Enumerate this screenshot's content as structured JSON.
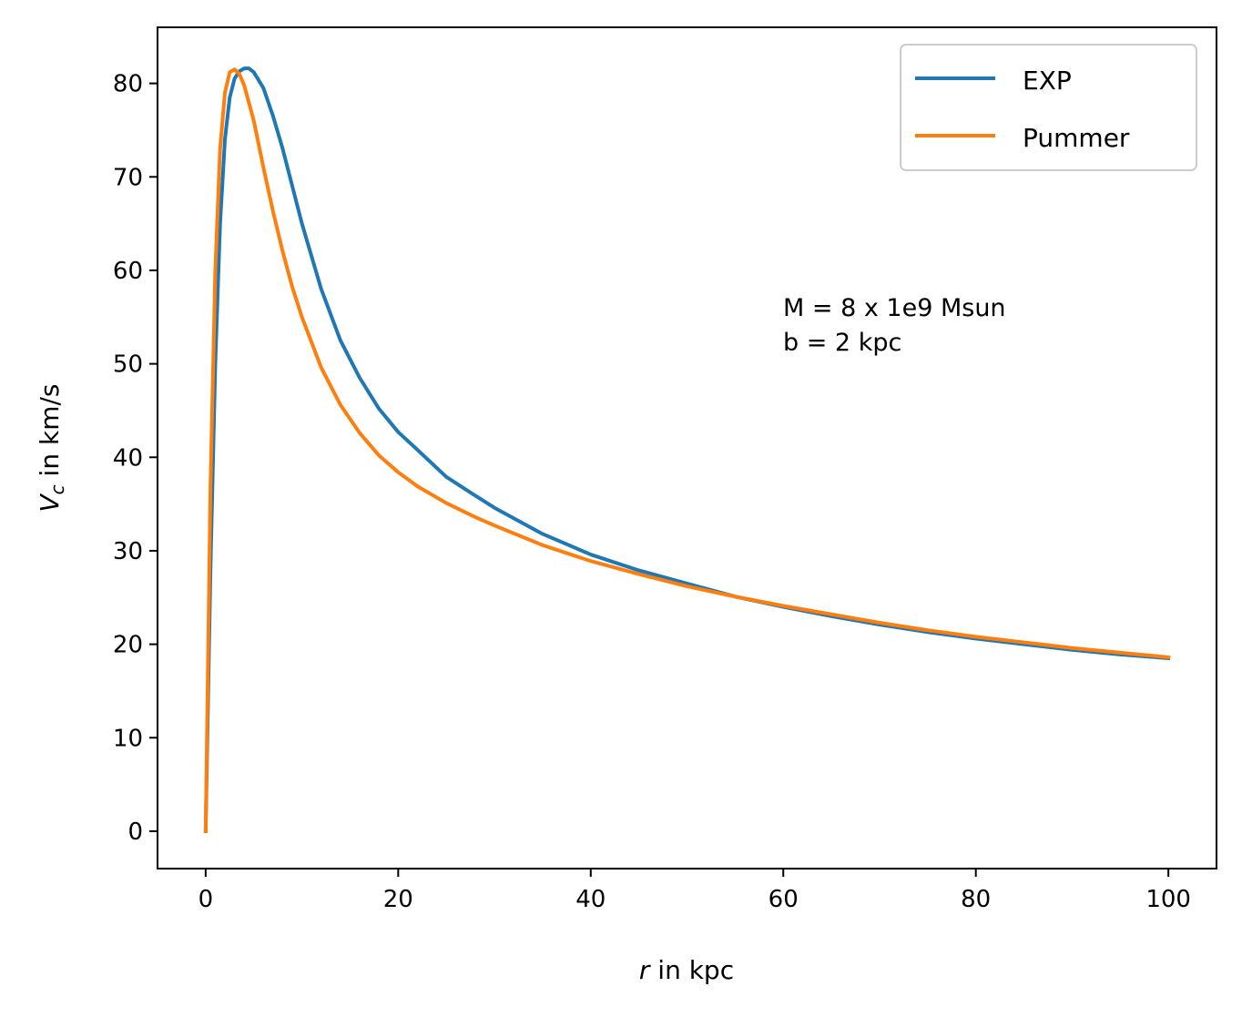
{
  "chart_data": {
    "type": "line",
    "title": "",
    "xlabel_var": "r",
    "xlabel_rest": " in kpc",
    "ylabel_var": "V",
    "ylabel_sub": "c",
    "ylabel_rest": " in km/s",
    "xlim": [
      -5,
      105
    ],
    "ylim": [
      -4,
      86
    ],
    "xticks": [
      0,
      20,
      40,
      60,
      80,
      100
    ],
    "yticks": [
      0,
      10,
      20,
      30,
      40,
      50,
      60,
      70,
      80
    ],
    "grid": false,
    "legend_position": "top-right",
    "annotation": {
      "x": 60,
      "y": 50,
      "lines": [
        "M = 8 x 1e9 Msun",
        "b = 2 kpc"
      ]
    },
    "series": [
      {
        "name": "EXP",
        "color": "#1f77b4",
        "x": [
          0,
          0.5,
          1,
          1.5,
          2,
          2.5,
          3,
          3.5,
          4,
          4.5,
          5,
          6,
          7,
          8,
          9,
          10,
          12,
          14,
          16,
          18,
          20,
          22,
          25,
          28,
          30,
          35,
          40,
          45,
          50,
          55,
          60,
          65,
          70,
          75,
          80,
          85,
          90,
          95,
          100
        ],
        "y": [
          0,
          28,
          50,
          65,
          74,
          78.5,
          80.5,
          81.3,
          81.6,
          81.6,
          81.2,
          79.5,
          76.5,
          73,
          69,
          65,
          58,
          52.5,
          48.5,
          45.2,
          42.7,
          40.8,
          37.9,
          35.9,
          34.6,
          31.8,
          29.6,
          27.9,
          26.5,
          25.1,
          24.0,
          23.0,
          22.1,
          21.3,
          20.6,
          20.0,
          19.4,
          18.9,
          18.5
        ]
      },
      {
        "name": "Pummer",
        "color": "#ff7f0e",
        "x": [
          0,
          0.5,
          1,
          1.5,
          2,
          2.5,
          3,
          3.5,
          4,
          5,
          6,
          7,
          8,
          9,
          10,
          12,
          14,
          16,
          18,
          20,
          22,
          25,
          28,
          30,
          35,
          40,
          45,
          50,
          55,
          60,
          65,
          70,
          75,
          80,
          85,
          90,
          95,
          100
        ],
        "y": [
          0,
          37,
          60,
          73,
          79,
          81.2,
          81.5,
          81,
          79.8,
          76,
          71,
          66.3,
          62,
          58.2,
          55,
          49.6,
          45.6,
          42.6,
          40.2,
          38.4,
          36.9,
          35.1,
          33.6,
          32.7,
          30.6,
          28.9,
          27.5,
          26.2,
          25.1,
          24.1,
          23.2,
          22.3,
          21.5,
          20.8,
          20.2,
          19.6,
          19.1,
          18.6
        ]
      }
    ]
  }
}
